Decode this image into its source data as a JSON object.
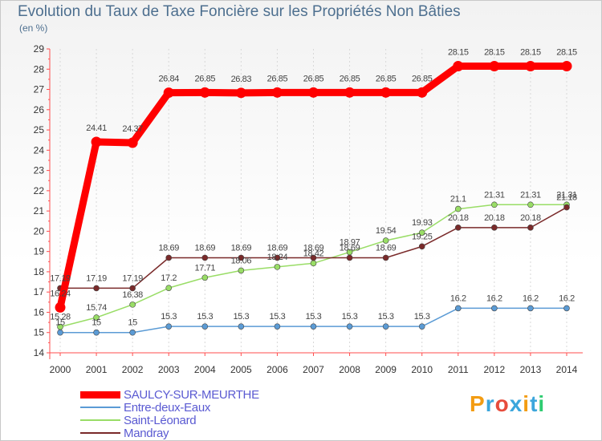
{
  "chart_data": {
    "type": "line",
    "title": "Evolution du Taux de Taxe Foncière sur les Propriétés Non Bâties",
    "ylabel": "(en %)",
    "xlabel": "",
    "x": [
      "2000",
      "2001",
      "2002",
      "2003",
      "2004",
      "2005",
      "2006",
      "2007",
      "2008",
      "2009",
      "2010",
      "2011",
      "2012",
      "2013",
      "2014"
    ],
    "ylim": [
      14,
      29
    ],
    "yticks": [
      "14",
      "15",
      "16",
      "17",
      "18",
      "19",
      "20",
      "21",
      "22",
      "23",
      "24",
      "25",
      "26",
      "27",
      "28",
      "29"
    ],
    "legend_position": "bottom-left",
    "series": [
      {
        "name": "SAULCY-SUR-MEURTHE",
        "color": "#ff0000",
        "values": [
          16.24,
          24.41,
          24.37,
          26.84,
          26.85,
          26.83,
          26.85,
          26.85,
          26.85,
          26.85,
          26.85,
          28.15,
          28.15,
          28.15,
          28.15
        ],
        "labels": [
          "16.24",
          "24.41",
          "24.37",
          "26.84",
          "26.85",
          "26.83",
          "26.85",
          "26.85",
          "26.85",
          "26.85",
          "26.85",
          "28.15",
          "28.15",
          "28.15",
          "28.15"
        ]
      },
      {
        "name": "Entre-deux-Eaux",
        "color": "#5b9bd5",
        "values": [
          15,
          15,
          15,
          15.3,
          15.3,
          15.3,
          15.3,
          15.3,
          15.3,
          15.3,
          15.3,
          16.2,
          16.2,
          16.2,
          16.2
        ],
        "labels": [
          "15",
          "15",
          "15",
          "15.3",
          "15.3",
          "15.3",
          "15.3",
          "15.3",
          "15.3",
          "15.3",
          "15.3",
          "16.2",
          "16.2",
          "16.2",
          "16.2"
        ]
      },
      {
        "name": "Saint-Léonard",
        "color": "#99dd66",
        "values": [
          15.28,
          15.74,
          16.38,
          17.2,
          17.71,
          18.06,
          18.24,
          18.42,
          18.97,
          19.54,
          19.93,
          21.1,
          21.31,
          21.31,
          21.31
        ],
        "labels": [
          "15.28",
          "15.74",
          "16.38",
          "17.2",
          "17.71",
          "18.06",
          "18.24",
          "18.42",
          "18.97",
          "19.54",
          "19.93",
          "21.1",
          "21.31",
          "21.31",
          "21.31"
        ]
      },
      {
        "name": "Mandray",
        "color": "#7a2a2a",
        "values": [
          17.19,
          17.19,
          17.19,
          18.69,
          18.69,
          18.69,
          18.69,
          18.69,
          18.69,
          18.69,
          19.25,
          20.18,
          20.18,
          20.18,
          21.18
        ],
        "labels": [
          "17.19",
          "17.19",
          "17.19",
          "18.69",
          "18.69",
          "18.69",
          "18.69",
          "18.69",
          "18.69",
          "18.69",
          "19.25",
          "20.18",
          "20.18",
          "20.18",
          "21.18"
        ]
      }
    ]
  },
  "legend": {
    "items": [
      {
        "name": "SAULCY-SUR-MEURTHE",
        "color": "#ff0000"
      },
      {
        "name": "Entre-deux-Eaux",
        "color": "#5b9bd5"
      },
      {
        "name": "Saint-Léonard",
        "color": "#99dd66"
      },
      {
        "name": "Mandray",
        "color": "#7a2a2a"
      }
    ]
  },
  "logo": {
    "letters": [
      "P",
      "r",
      "o",
      "x",
      "i",
      "t",
      "i"
    ],
    "colors": [
      "#f39c12",
      "#3ca6dc",
      "#e74c3c",
      "#3ca6dc",
      "#f39c12",
      "#3ca6dc",
      "#2ecc71"
    ]
  }
}
